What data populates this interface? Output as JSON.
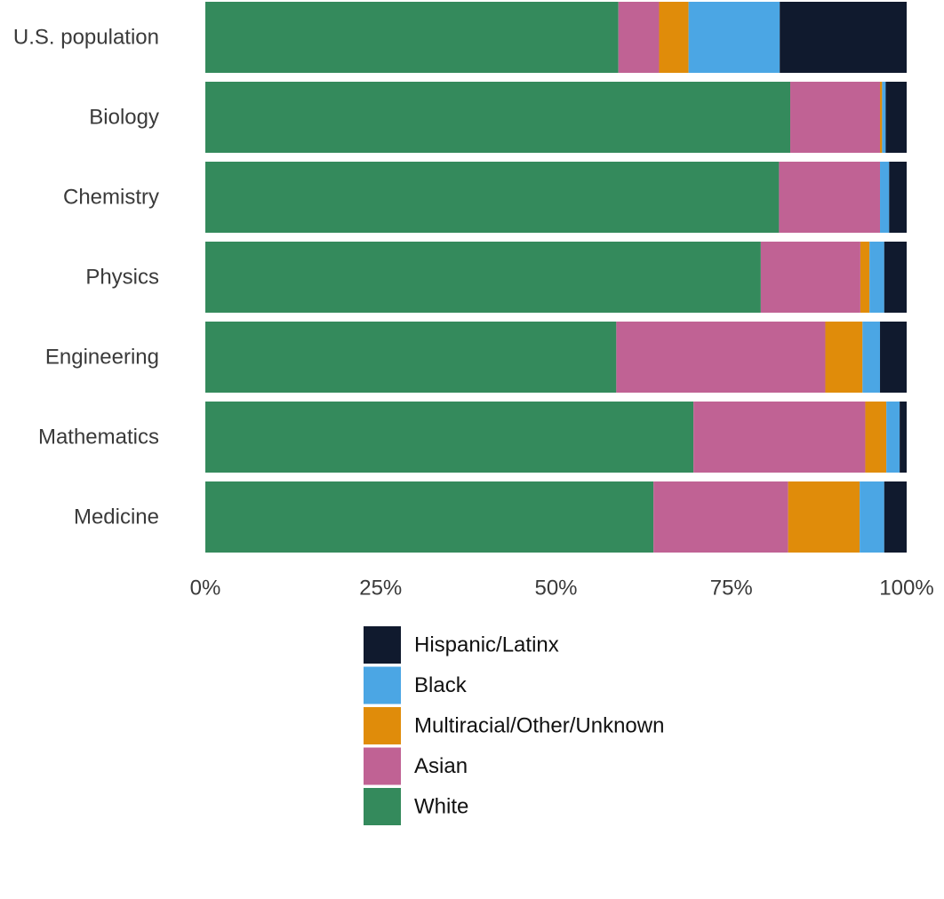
{
  "chart_data": {
    "type": "bar",
    "orientation": "horizontal",
    "stacked": true,
    "title": "",
    "xlabel": "",
    "ylabel": "",
    "xlim": [
      0,
      100
    ],
    "x_ticks": [
      "0%",
      "25%",
      "50%",
      "75%",
      "100%"
    ],
    "x_tick_values": [
      0,
      25,
      50,
      75,
      100
    ],
    "grid": false,
    "legend_position": "bottom",
    "categories": [
      "U.S. population",
      "Biology",
      "Chemistry",
      "Physics",
      "Engineering",
      "Mathematics",
      "Medicine"
    ],
    "series": [
      {
        "name": "White",
        "color": "#348A5C",
        "values": [
          58.9,
          83.4,
          81.8,
          79.2,
          58.6,
          69.6,
          63.9
        ]
      },
      {
        "name": "Asian",
        "color": "#C06294",
        "values": [
          5.8,
          12.8,
          14.4,
          14.2,
          29.8,
          24.5,
          19.2
        ]
      },
      {
        "name": "Multiracial/Other/Unknown",
        "color": "#E08C0A",
        "values": [
          4.2,
          0.3,
          0.0,
          1.3,
          5.3,
          3.0,
          10.2
        ]
      },
      {
        "name": "Black",
        "color": "#4BA6E4",
        "values": [
          13.0,
          0.5,
          1.3,
          2.1,
          2.5,
          1.9,
          3.5
        ]
      },
      {
        "name": "Hispanic/Latinx",
        "color": "#101A2E",
        "values": [
          18.1,
          3.0,
          2.5,
          3.2,
          3.8,
          1.0,
          3.2
        ]
      }
    ],
    "legend_order": [
      "Hispanic/Latinx",
      "Black",
      "Multiracial/Other/Unknown",
      "Asian",
      "White"
    ]
  }
}
